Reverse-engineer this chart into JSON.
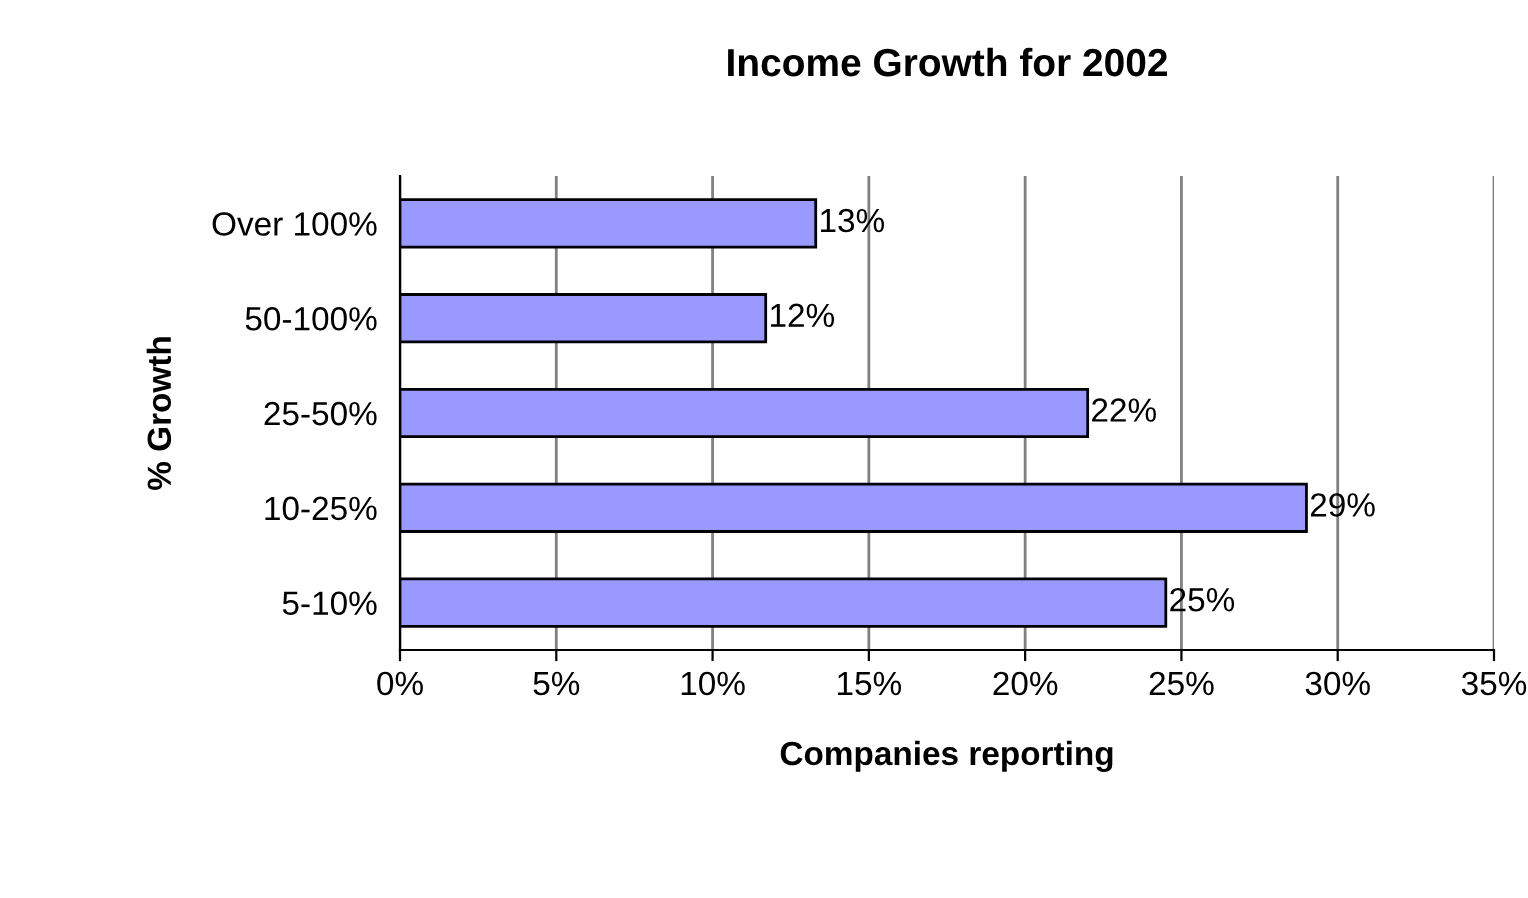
{
  "chart_data": {
    "type": "bar",
    "orientation": "horizontal",
    "title": "Income Growth for 2002",
    "xlabel": "Companies reporting",
    "ylabel": "% Growth",
    "categories": [
      "Over 100%",
      "50-100%",
      "25-50%",
      "10-25%",
      "5-10%"
    ],
    "values": [
      13.3,
      11.7,
      22,
      29,
      24.5
    ],
    "value_labels": [
      "13%",
      "12%",
      "22%",
      "29%",
      "25%"
    ],
    "color": "#9999ff",
    "xlim": [
      0,
      35
    ],
    "xticks": [
      {
        "value": 0,
        "label": "0%"
      },
      {
        "value": 5,
        "label": "5%"
      },
      {
        "value": 10,
        "label": "10%"
      },
      {
        "value": 15,
        "label": "15%"
      },
      {
        "value": 20,
        "label": "20%"
      },
      {
        "value": 25,
        "label": "25%"
      },
      {
        "value": 30,
        "label": "30%"
      },
      {
        "value": 35,
        "label": "35%"
      }
    ],
    "grid": "x",
    "legend": false
  }
}
